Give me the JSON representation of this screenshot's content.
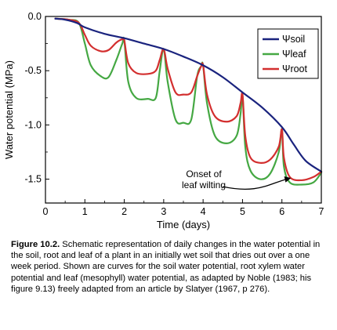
{
  "chart_data": {
    "type": "line",
    "xlabel": "Time (days)",
    "ylabel": "Water potential (MPa)",
    "xlim": [
      0,
      7
    ],
    "ylim": [
      -1.72,
      0
    ],
    "x_ticks": [
      0,
      1,
      2,
      3,
      4,
      5,
      6,
      7
    ],
    "y_ticks": [
      0.0,
      -0.5,
      -1.0,
      -1.5
    ],
    "y_tick_labels": [
      "0.0",
      "-0.5",
      "-1.0",
      "-1.5"
    ],
    "grid": false,
    "legend_position": "top-right",
    "series": [
      {
        "name": "Ψsoil",
        "color": "#1a237e",
        "x": [
          0.25,
          0.5,
          0.8,
          1.0,
          1.5,
          2.0,
          2.5,
          3.0,
          3.5,
          4.0,
          4.5,
          5.0,
          5.5,
          6.0,
          6.3,
          6.6,
          7.0
        ],
        "y": [
          -0.02,
          -0.03,
          -0.06,
          -0.1,
          -0.16,
          -0.2,
          -0.25,
          -0.3,
          -0.37,
          -0.45,
          -0.56,
          -0.7,
          -0.84,
          -1.02,
          -1.18,
          -1.33,
          -1.43
        ]
      },
      {
        "name": "Ψleaf",
        "color": "#45a843",
        "x": [
          0.25,
          0.6,
          0.85,
          1.0,
          1.15,
          1.4,
          1.6,
          1.8,
          1.95,
          2.0,
          2.1,
          2.3,
          2.6,
          2.8,
          2.9,
          3.0,
          3.1,
          3.3,
          3.5,
          3.7,
          3.85,
          3.95,
          4.0,
          4.1,
          4.3,
          4.6,
          4.85,
          4.95,
          5.0,
          5.07,
          5.2,
          5.45,
          5.7,
          5.92,
          6.0,
          6.05,
          6.2,
          6.5,
          6.8,
          7.0
        ],
        "y": [
          -0.02,
          -0.03,
          -0.06,
          -0.25,
          -0.45,
          -0.55,
          -0.56,
          -0.4,
          -0.25,
          -0.22,
          -0.6,
          -0.75,
          -0.76,
          -0.75,
          -0.5,
          -0.3,
          -0.6,
          -0.95,
          -0.98,
          -0.95,
          -0.55,
          -0.46,
          -0.45,
          -0.8,
          -1.1,
          -1.17,
          -1.1,
          -0.9,
          -0.72,
          -1.2,
          -1.42,
          -1.5,
          -1.45,
          -1.25,
          -1.04,
          -1.38,
          -1.53,
          -1.55,
          -1.53,
          -1.44
        ]
      },
      {
        "name": "Ψroot",
        "color": "#d32f2f",
        "x": [
          0.25,
          0.6,
          0.85,
          1.0,
          1.15,
          1.4,
          1.6,
          1.8,
          1.95,
          2.0,
          2.1,
          2.3,
          2.6,
          2.8,
          2.9,
          3.0,
          3.1,
          3.3,
          3.5,
          3.7,
          3.85,
          3.95,
          4.0,
          4.1,
          4.3,
          4.6,
          4.85,
          4.95,
          5.0,
          5.07,
          5.2,
          5.45,
          5.7,
          5.92,
          6.0,
          6.05,
          6.2,
          6.5,
          6.8,
          7.0
        ],
        "y": [
          -0.02,
          -0.03,
          -0.06,
          -0.17,
          -0.27,
          -0.32,
          -0.31,
          -0.24,
          -0.21,
          -0.22,
          -0.43,
          -0.52,
          -0.53,
          -0.5,
          -0.4,
          -0.3,
          -0.48,
          -0.7,
          -0.72,
          -0.7,
          -0.55,
          -0.46,
          -0.45,
          -0.72,
          -0.92,
          -0.97,
          -0.92,
          -0.8,
          -0.72,
          -1.1,
          -1.3,
          -1.35,
          -1.32,
          -1.2,
          -1.04,
          -1.3,
          -1.48,
          -1.51,
          -1.48,
          -1.43
        ]
      }
    ],
    "annotation": {
      "lines": [
        "Onset of",
        "leaf wilting"
      ],
      "arrow_to": {
        "x": 6.25,
        "y": -1.52
      }
    }
  },
  "caption": {
    "label": "Figure 10.2.",
    "text": "Schematic representation of daily changes in the water potential in the soil, root and leaf of a plant in an initially wet soil that dries out over a one week period. Shown are curves for the soil water potential, root xylem water potential and leaf (mesophyll) water potential, as adapted by Noble (1983; his figure 9.13) freely adapted from an article by Slatyer (1967, p 276)."
  }
}
